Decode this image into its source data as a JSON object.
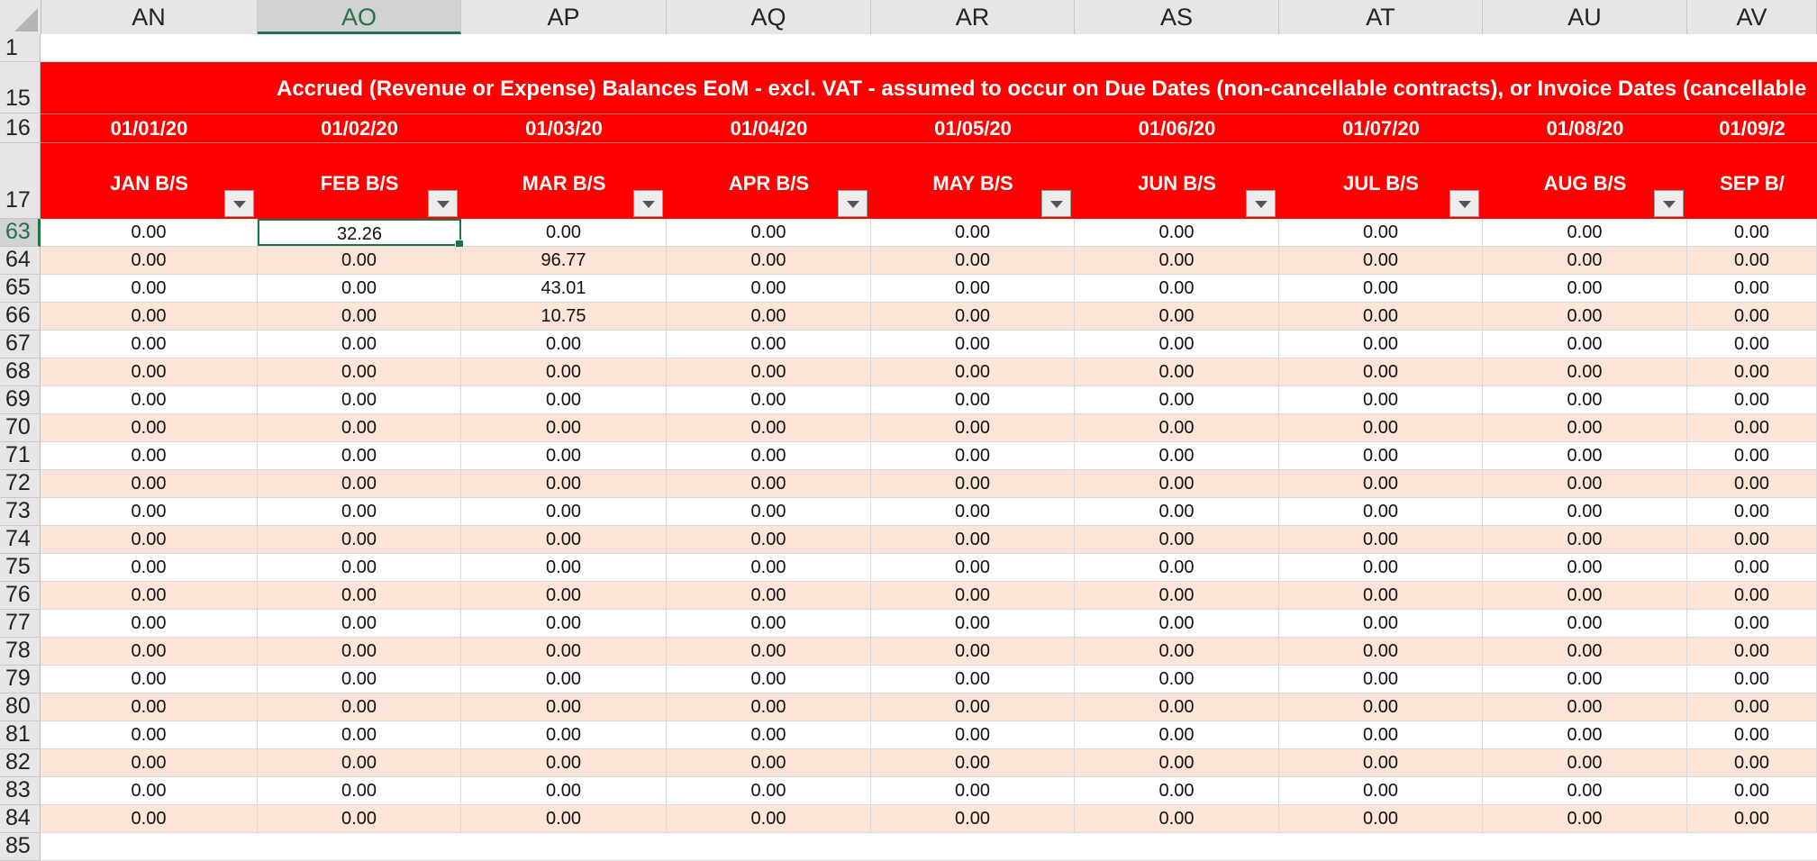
{
  "columns": [
    "AN",
    "AO",
    "AP",
    "AQ",
    "AR",
    "AS",
    "AT",
    "AU",
    "AV"
  ],
  "selected_column": "AO",
  "row_numbers": {
    "r1": "1",
    "r15": "15",
    "r16": "16",
    "r17": "17",
    "data": [
      "63",
      "64",
      "65",
      "66",
      "67",
      "68",
      "69",
      "70",
      "71",
      "72",
      "73",
      "74",
      "75",
      "76",
      "77",
      "78",
      "79",
      "80",
      "81",
      "82",
      "83",
      "84",
      "85"
    ]
  },
  "banner": "Accrued (Revenue or Expense) Balances EoM - excl. VAT - assumed to occur on Due Dates (non-cancellable contracts), or Invoice Dates (cancellable",
  "dates": [
    "01/01/20",
    "01/02/20",
    "01/03/20",
    "01/04/20",
    "01/05/20",
    "01/06/20",
    "01/07/20",
    "01/08/20",
    "01/09/2"
  ],
  "months": [
    "JAN B/S",
    "FEB B/S",
    "MAR B/S",
    "APR B/S",
    "MAY B/S",
    "JUN B/S",
    "JUL B/S",
    "AUG B/S",
    "SEP B/"
  ],
  "rows": [
    [
      "0.00",
      "32.26",
      "0.00",
      "0.00",
      "0.00",
      "0.00",
      "0.00",
      "0.00",
      "0.00"
    ],
    [
      "0.00",
      "0.00",
      "96.77",
      "0.00",
      "0.00",
      "0.00",
      "0.00",
      "0.00",
      "0.00"
    ],
    [
      "0.00",
      "0.00",
      "43.01",
      "0.00",
      "0.00",
      "0.00",
      "0.00",
      "0.00",
      "0.00"
    ],
    [
      "0.00",
      "0.00",
      "10.75",
      "0.00",
      "0.00",
      "0.00",
      "0.00",
      "0.00",
      "0.00"
    ],
    [
      "0.00",
      "0.00",
      "0.00",
      "0.00",
      "0.00",
      "0.00",
      "0.00",
      "0.00",
      "0.00"
    ],
    [
      "0.00",
      "0.00",
      "0.00",
      "0.00",
      "0.00",
      "0.00",
      "0.00",
      "0.00",
      "0.00"
    ],
    [
      "0.00",
      "0.00",
      "0.00",
      "0.00",
      "0.00",
      "0.00",
      "0.00",
      "0.00",
      "0.00"
    ],
    [
      "0.00",
      "0.00",
      "0.00",
      "0.00",
      "0.00",
      "0.00",
      "0.00",
      "0.00",
      "0.00"
    ],
    [
      "0.00",
      "0.00",
      "0.00",
      "0.00",
      "0.00",
      "0.00",
      "0.00",
      "0.00",
      "0.00"
    ],
    [
      "0.00",
      "0.00",
      "0.00",
      "0.00",
      "0.00",
      "0.00",
      "0.00",
      "0.00",
      "0.00"
    ],
    [
      "0.00",
      "0.00",
      "0.00",
      "0.00",
      "0.00",
      "0.00",
      "0.00",
      "0.00",
      "0.00"
    ],
    [
      "0.00",
      "0.00",
      "0.00",
      "0.00",
      "0.00",
      "0.00",
      "0.00",
      "0.00",
      "0.00"
    ],
    [
      "0.00",
      "0.00",
      "0.00",
      "0.00",
      "0.00",
      "0.00",
      "0.00",
      "0.00",
      "0.00"
    ],
    [
      "0.00",
      "0.00",
      "0.00",
      "0.00",
      "0.00",
      "0.00",
      "0.00",
      "0.00",
      "0.00"
    ],
    [
      "0.00",
      "0.00",
      "0.00",
      "0.00",
      "0.00",
      "0.00",
      "0.00",
      "0.00",
      "0.00"
    ],
    [
      "0.00",
      "0.00",
      "0.00",
      "0.00",
      "0.00",
      "0.00",
      "0.00",
      "0.00",
      "0.00"
    ],
    [
      "0.00",
      "0.00",
      "0.00",
      "0.00",
      "0.00",
      "0.00",
      "0.00",
      "0.00",
      "0.00"
    ],
    [
      "0.00",
      "0.00",
      "0.00",
      "0.00",
      "0.00",
      "0.00",
      "0.00",
      "0.00",
      "0.00"
    ],
    [
      "0.00",
      "0.00",
      "0.00",
      "0.00",
      "0.00",
      "0.00",
      "0.00",
      "0.00",
      "0.00"
    ],
    [
      "0.00",
      "0.00",
      "0.00",
      "0.00",
      "0.00",
      "0.00",
      "0.00",
      "0.00",
      "0.00"
    ],
    [
      "0.00",
      "0.00",
      "0.00",
      "0.00",
      "0.00",
      "0.00",
      "0.00",
      "0.00",
      "0.00"
    ],
    [
      "0.00",
      "0.00",
      "0.00",
      "0.00",
      "0.00",
      "0.00",
      "0.00",
      "0.00",
      "0.00"
    ]
  ],
  "active_cell": {
    "row": 0,
    "col": 1
  },
  "colors": {
    "header_red": "#ff0000",
    "band_peach": "#fce4d6",
    "selection_green": "#217346"
  }
}
